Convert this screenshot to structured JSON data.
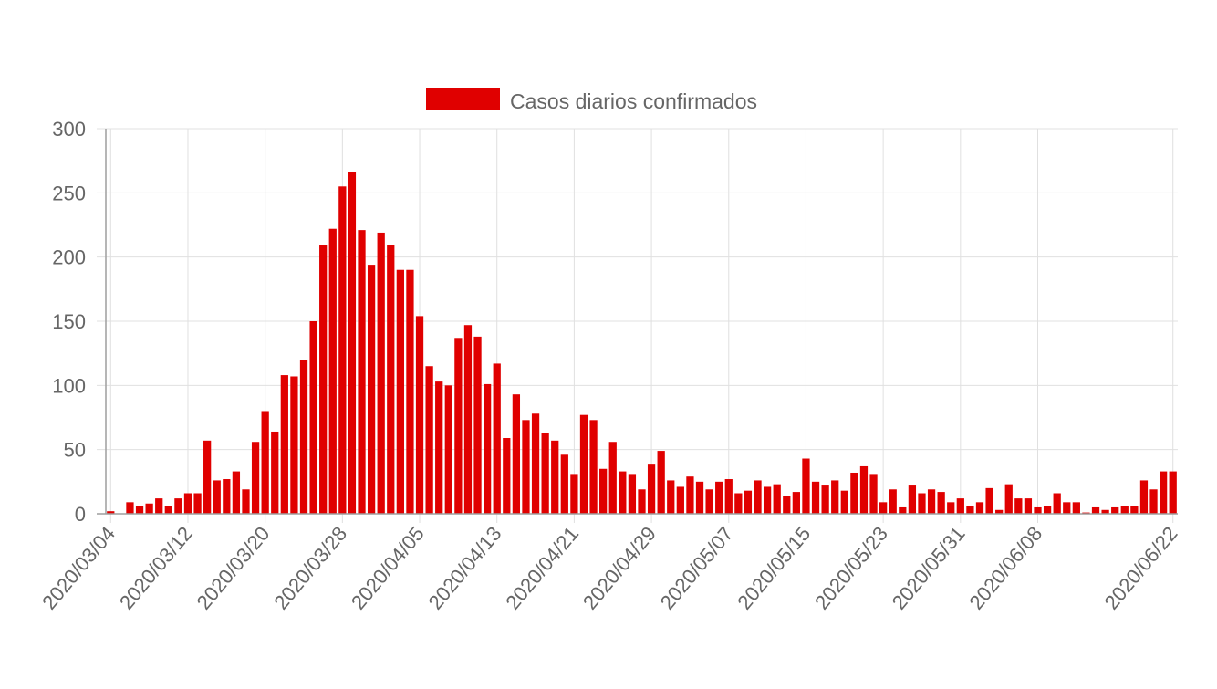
{
  "chart_data": {
    "type": "bar",
    "title": "",
    "xlabel": "",
    "ylabel": "",
    "ylim": [
      0,
      300
    ],
    "yticks": [
      0,
      50,
      100,
      150,
      200,
      250,
      300
    ],
    "grid": true,
    "legend_position": "top",
    "x_ticks": [
      "2020/03/04",
      "2020/03/12",
      "2020/03/20",
      "2020/03/28",
      "2020/04/05",
      "2020/04/13",
      "2020/04/21",
      "2020/04/29",
      "2020/05/07",
      "2020/05/15",
      "2020/05/23",
      "2020/05/31",
      "2020/06/08",
      "2020/06/22"
    ],
    "categories": [
      "2020/03/04",
      "2020/03/05",
      "2020/03/06",
      "2020/03/07",
      "2020/03/08",
      "2020/03/09",
      "2020/03/10",
      "2020/03/11",
      "2020/03/12",
      "2020/03/13",
      "2020/03/14",
      "2020/03/15",
      "2020/03/16",
      "2020/03/17",
      "2020/03/18",
      "2020/03/19",
      "2020/03/20",
      "2020/03/21",
      "2020/03/22",
      "2020/03/23",
      "2020/03/24",
      "2020/03/25",
      "2020/03/26",
      "2020/03/27",
      "2020/03/28",
      "2020/03/29",
      "2020/03/30",
      "2020/03/31",
      "2020/04/01",
      "2020/04/02",
      "2020/04/03",
      "2020/04/04",
      "2020/04/05",
      "2020/04/06",
      "2020/04/07",
      "2020/04/08",
      "2020/04/09",
      "2020/04/10",
      "2020/04/11",
      "2020/04/12",
      "2020/04/13",
      "2020/04/14",
      "2020/04/15",
      "2020/04/16",
      "2020/04/17",
      "2020/04/18",
      "2020/04/19",
      "2020/04/20",
      "2020/04/21",
      "2020/04/22",
      "2020/04/23",
      "2020/04/24",
      "2020/04/25",
      "2020/04/26",
      "2020/04/27",
      "2020/04/28",
      "2020/04/29",
      "2020/04/30",
      "2020/05/01",
      "2020/05/02",
      "2020/05/03",
      "2020/05/04",
      "2020/05/05",
      "2020/05/06",
      "2020/05/07",
      "2020/05/08",
      "2020/05/09",
      "2020/05/10",
      "2020/05/11",
      "2020/05/12",
      "2020/05/13",
      "2020/05/14",
      "2020/05/15",
      "2020/05/16",
      "2020/05/17",
      "2020/05/18",
      "2020/05/19",
      "2020/05/20",
      "2020/05/21",
      "2020/05/22",
      "2020/05/23",
      "2020/05/24",
      "2020/05/25",
      "2020/05/26",
      "2020/05/27",
      "2020/05/28",
      "2020/05/29",
      "2020/05/30",
      "2020/05/31",
      "2020/06/01",
      "2020/06/02",
      "2020/06/03",
      "2020/06/04",
      "2020/06/05",
      "2020/06/06",
      "2020/06/07",
      "2020/06/08",
      "2020/06/09",
      "2020/06/10",
      "2020/06/11",
      "2020/06/12",
      "2020/06/13",
      "2020/06/14",
      "2020/06/15",
      "2020/06/16",
      "2020/06/17",
      "2020/06/18",
      "2020/06/19",
      "2020/06/20",
      "2020/06/21",
      "2020/06/22"
    ],
    "series": [
      {
        "name": "Casos diarios confirmados",
        "color": "#e00000",
        "values": [
          2,
          0,
          9,
          6,
          8,
          12,
          6,
          12,
          16,
          16,
          57,
          26,
          27,
          33,
          19,
          56,
          80,
          64,
          108,
          107,
          120,
          150,
          209,
          222,
          255,
          266,
          221,
          194,
          219,
          209,
          190,
          190,
          154,
          115,
          103,
          100,
          137,
          147,
          138,
          101,
          117,
          59,
          93,
          73,
          78,
          63,
          57,
          46,
          31,
          77,
          73,
          35,
          56,
          33,
          31,
          19,
          39,
          49,
          26,
          21,
          29,
          25,
          19,
          25,
          27,
          16,
          18,
          26,
          21,
          23,
          14,
          17,
          43,
          25,
          22,
          26,
          18,
          32,
          37,
          31,
          9,
          19,
          5,
          22,
          16,
          19,
          17,
          9,
          12,
          6,
          9,
          20,
          3,
          23,
          12,
          12,
          5,
          6,
          16,
          9,
          9,
          1,
          5,
          3,
          5,
          6,
          6,
          26,
          19,
          33,
          33
        ]
      }
    ]
  }
}
